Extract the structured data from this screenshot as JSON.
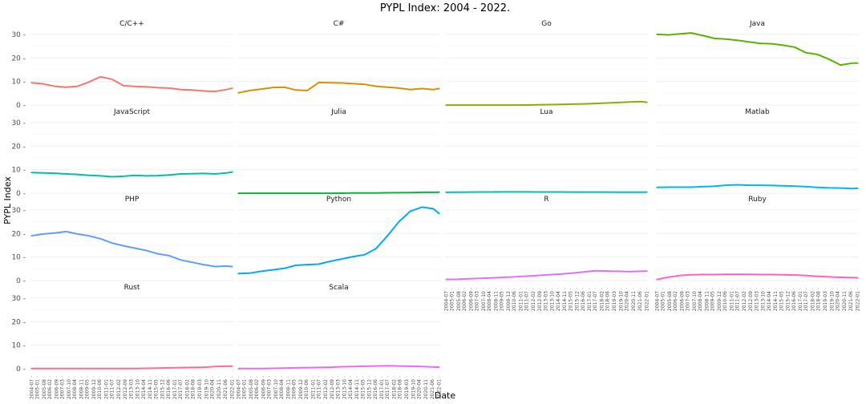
{
  "chart_data": {
    "type": "line",
    "facet": true,
    "title": "PYPL Index: 2004 - 2022.",
    "xlabel": "Date",
    "ylabel": "PYPL Index",
    "ylim": [
      -2,
      32
    ],
    "yticks": [
      0,
      10,
      20,
      30
    ],
    "grid": true,
    "legend": "none",
    "x_ticks": [
      "2004-07",
      "2005-01",
      "2005-08",
      "2006-02",
      "2006-09",
      "2007-03",
      "2007-10",
      "2008-04",
      "2008-11",
      "2009-05",
      "2009-12",
      "2010-06",
      "2011-01",
      "2011-07",
      "2012-02",
      "2012-09",
      "2013-03",
      "2013-10",
      "2014-04",
      "2014-11",
      "2015-05",
      "2015-12",
      "2016-06",
      "2017-01",
      "2017-07",
      "2018-02",
      "2018-08",
      "2019-03",
      "2019-10",
      "2020-04",
      "2020-11",
      "2021-06",
      "2022-01"
    ],
    "x": [
      "2004-07",
      "2005-07",
      "2006-07",
      "2007-07",
      "2008-07",
      "2009-07",
      "2010-07",
      "2011-07",
      "2012-07",
      "2013-07",
      "2014-07",
      "2015-07",
      "2016-07",
      "2017-07",
      "2018-07",
      "2019-07",
      "2020-07",
      "2021-07",
      "2022-01"
    ],
    "series": [
      {
        "name": "C/C++",
        "color": "#F8766D",
        "values": [
          9.5,
          9.0,
          8.0,
          7.6,
          8.0,
          9.8,
          12.0,
          11.0,
          8.3,
          7.9,
          7.8,
          7.4,
          7.2,
          6.6,
          6.4,
          6.0,
          5.8,
          6.6,
          7.1
        ]
      },
      {
        "name": "C#",
        "color": "#D39200",
        "values": [
          5.2,
          6.2,
          6.8,
          7.5,
          7.6,
          6.4,
          6.2,
          9.6,
          9.5,
          9.4,
          9.1,
          8.8,
          8.0,
          7.6,
          7.2,
          6.6,
          7.0,
          6.6,
          7.0
        ]
      },
      {
        "name": "Go",
        "color": "#93AA00",
        "values": [
          0.0,
          0.0,
          0.0,
          0.0,
          0.0,
          0.0,
          0.0,
          0.05,
          0.1,
          0.2,
          0.3,
          0.4,
          0.5,
          0.7,
          0.9,
          1.1,
          1.3,
          1.5,
          1.2
        ]
      },
      {
        "name": "Java",
        "color": "#5BB300",
        "values": [
          30.0,
          29.8,
          30.2,
          30.6,
          29.5,
          28.3,
          28.0,
          27.5,
          26.8,
          26.2,
          26.0,
          25.4,
          24.6,
          22.2,
          21.5,
          19.5,
          17.0,
          17.8,
          17.8
        ]
      },
      {
        "name": "JavaScript",
        "color": "#00C19F",
        "values": [
          8.8,
          8.6,
          8.5,
          8.2,
          8.0,
          7.6,
          7.4,
          7.0,
          7.2,
          7.6,
          7.4,
          7.5,
          7.8,
          8.2,
          8.3,
          8.4,
          8.2,
          8.6,
          9.0
        ]
      },
      {
        "name": "Julia",
        "color": "#00BA38",
        "values": [
          0.0,
          0.0,
          0.0,
          0.0,
          0.0,
          0.0,
          0.0,
          0.0,
          0.0,
          0.05,
          0.1,
          0.1,
          0.15,
          0.2,
          0.25,
          0.3,
          0.4,
          0.4,
          0.45
        ]
      },
      {
        "name": "Lua",
        "color": "#00BFC4",
        "values": [
          0.4,
          0.45,
          0.5,
          0.55,
          0.55,
          0.6,
          0.6,
          0.6,
          0.55,
          0.55,
          0.55,
          0.5,
          0.5,
          0.5,
          0.5,
          0.45,
          0.45,
          0.45,
          0.5
        ]
      },
      {
        "name": "Matlab",
        "color": "#00B9E3",
        "values": [
          2.5,
          2.6,
          2.6,
          2.6,
          2.8,
          3.0,
          3.4,
          3.6,
          3.4,
          3.4,
          3.3,
          3.2,
          3.0,
          2.8,
          2.5,
          2.3,
          2.2,
          2.0,
          2.1
        ]
      },
      {
        "name": "PHP",
        "color": "#619CFF",
        "values": [
          19.0,
          19.8,
          20.2,
          20.8,
          19.8,
          19.0,
          17.8,
          16.0,
          14.8,
          13.8,
          12.8,
          11.4,
          10.6,
          8.8,
          7.8,
          6.8,
          6.0,
          6.2,
          6.0
        ]
      },
      {
        "name": "Python",
        "color": "#00A9FF",
        "values": [
          3.0,
          3.2,
          4.0,
          4.6,
          5.2,
          6.5,
          6.8,
          7.0,
          8.2,
          9.2,
          10.2,
          11.0,
          13.6,
          19.0,
          25.0,
          29.5,
          31.2,
          30.5,
          28.5
        ]
      },
      {
        "name": "R",
        "color": "#DB72FB",
        "values": [
          0.5,
          0.6,
          0.8,
          1.0,
          1.2,
          1.4,
          1.6,
          1.9,
          2.2,
          2.5,
          2.8,
          3.2,
          3.7,
          4.2,
          4.1,
          4.0,
          3.8,
          4.0,
          4.1
        ]
      },
      {
        "name": "Ruby",
        "color": "#FF61C3",
        "values": [
          0.5,
          1.5,
          2.2,
          2.5,
          2.6,
          2.6,
          2.7,
          2.7,
          2.7,
          2.6,
          2.6,
          2.5,
          2.4,
          2.2,
          1.8,
          1.6,
          1.4,
          1.3,
          1.2
        ]
      },
      {
        "name": "Rust",
        "color": "#FF6C91",
        "values": [
          0.1,
          0.1,
          0.1,
          0.1,
          0.1,
          0.1,
          0.1,
          0.1,
          0.1,
          0.15,
          0.2,
          0.3,
          0.4,
          0.5,
          0.6,
          0.7,
          1.0,
          1.1,
          1.1
        ]
      },
      {
        "name": "Scala",
        "color": "#E76BF3",
        "values": [
          0.1,
          0.1,
          0.15,
          0.2,
          0.3,
          0.4,
          0.5,
          0.6,
          0.7,
          0.9,
          1.0,
          1.1,
          1.2,
          1.3,
          1.2,
          1.1,
          1.0,
          0.8,
          0.7
        ]
      }
    ]
  }
}
